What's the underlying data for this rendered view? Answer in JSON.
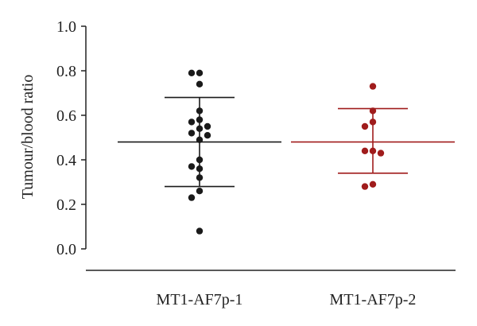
{
  "chart_data": {
    "type": "scatter",
    "ylabel": "Tumour/blood ratio",
    "xlabel": "",
    "ylim": [
      0.0,
      1.0
    ],
    "yticks": [
      "0.0",
      "0.2",
      "0.4",
      "0.6",
      "0.8",
      "1.0"
    ],
    "categories": [
      "MT1-AF7p-1",
      "MT1-AF7p-2"
    ],
    "grid": false,
    "series": [
      {
        "category": "MT1-AF7p-1",
        "color": "#1a1a1a",
        "mean": 0.48,
        "sd_upper": 0.68,
        "sd_lower": 0.28,
        "values": [
          0.79,
          0.79,
          0.74,
          0.62,
          0.58,
          0.57,
          0.55,
          0.54,
          0.52,
          0.51,
          0.49,
          0.4,
          0.37,
          0.36,
          0.32,
          0.26,
          0.23,
          0.08
        ]
      },
      {
        "category": "MT1-AF7p-2",
        "color": "#a01c1c",
        "mean": 0.48,
        "sd_upper": 0.63,
        "sd_lower": 0.34,
        "values": [
          0.73,
          0.62,
          0.57,
          0.55,
          0.44,
          0.44,
          0.43,
          0.29,
          0.28
        ]
      }
    ]
  }
}
